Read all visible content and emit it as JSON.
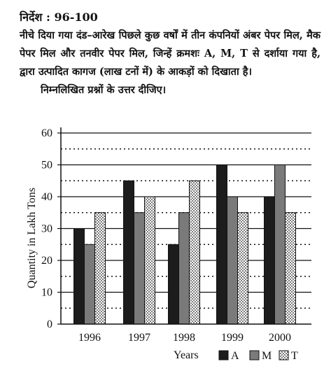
{
  "header": {
    "title": "निर्देश : 96-100",
    "body": "नीचे दिया गया दंड–आरेख पिछले कुछ वर्षों में तीन कंपनियों अंबर पेपर मिल, मैक पेपर मिल और तनवीर पेपर मिल, जिन्हें क्रमशः A, M, T से दर्शाया गया है, द्वारा उत्पादित कागज (लाख टनों में) के आकड़ों को दिखाता है।",
    "instruction": "निम्नलिखित प्रश्नों के उत्तर दीजिए।"
  },
  "chart_data": {
    "type": "bar",
    "categories": [
      "1996",
      "1997",
      "1998",
      "1999",
      "2000"
    ],
    "series": [
      {
        "name": "A",
        "values": [
          30,
          45,
          25,
          50,
          40
        ],
        "color": "#1c1c1c",
        "pattern": "solid"
      },
      {
        "name": "M",
        "values": [
          25,
          35,
          35,
          40,
          50
        ],
        "color": "#7a7a7a",
        "pattern": "solid"
      },
      {
        "name": "T",
        "values": [
          35,
          40,
          45,
          35,
          35
        ],
        "color": "#ffffff",
        "pattern": "dotted"
      }
    ],
    "xlabel": "Years",
    "ylabel": "Quantity in Lakh Tons",
    "ylim": [
      0,
      60
    ],
    "yticks": [
      "0",
      "10",
      "20",
      "30",
      "40",
      "50",
      "60"
    ],
    "grid": "solid lines at major ticks, dotted lines at midpoints",
    "legend": "bottom-right"
  }
}
